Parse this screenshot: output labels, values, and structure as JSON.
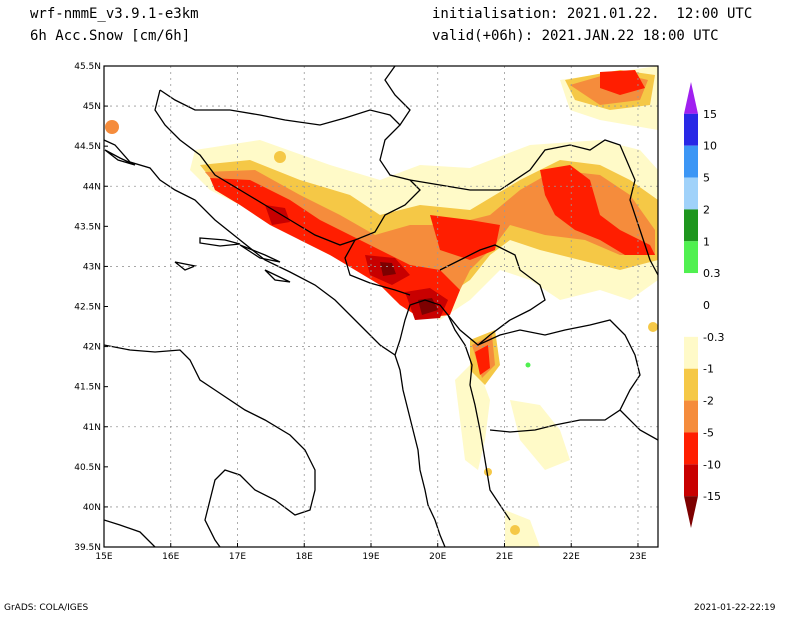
{
  "header": {
    "model": "wrf-nmmE_v3.9.1-e3km",
    "field": "6h Acc.Snow [cm/6h]",
    "init": "initialisation: 2021.01.22.  12:00 UTC",
    "valid": "valid(+06h): 2021.JAN.22 18:00 UTC"
  },
  "footer": {
    "credit": "GrADS: COLA/IGES",
    "timestamp": "2021-01-22-22:19"
  },
  "map": {
    "lat_labels": [
      {
        "value": 45.5,
        "label": "45.5N"
      },
      {
        "value": 45,
        "label": "45N"
      },
      {
        "value": 44.5,
        "label": "44.5N"
      },
      {
        "value": 44,
        "label": "44N"
      },
      {
        "value": 43.5,
        "label": "43.5N"
      },
      {
        "value": 43,
        "label": "43N"
      },
      {
        "value": 42.5,
        "label": "42.5N"
      },
      {
        "value": 42,
        "label": "42N"
      },
      {
        "value": 41.5,
        "label": "41.5N"
      },
      {
        "value": 41,
        "label": "41N"
      },
      {
        "value": 40.5,
        "label": "40.5N"
      },
      {
        "value": 40,
        "label": "40N"
      },
      {
        "value": 39.5,
        "label": "39.5N"
      }
    ],
    "lon_labels": [
      {
        "value": 15,
        "label": "15E"
      },
      {
        "value": 16,
        "label": "16E"
      },
      {
        "value": 17,
        "label": "17E"
      },
      {
        "value": 18,
        "label": "18E"
      },
      {
        "value": 19,
        "label": "19E"
      },
      {
        "value": 20,
        "label": "20E"
      },
      {
        "value": 21,
        "label": "21E"
      },
      {
        "value": 22,
        "label": "22E"
      },
      {
        "value": 23,
        "label": "23E"
      }
    ]
  },
  "colorbar": {
    "segments": [
      {
        "color": "#a020f0"
      },
      {
        "color": "#2828e6"
      },
      {
        "color": "#3c96f5"
      },
      {
        "color": "#a0d2fa"
      },
      {
        "color": "#1e961e"
      },
      {
        "color": "#50f050"
      },
      {
        "color": "#ffffff"
      },
      {
        "color": "#ffffff"
      },
      {
        "color": "#fffac8"
      },
      {
        "color": "#f5c846"
      },
      {
        "color": "#f58c3c"
      },
      {
        "color": "#ff1e00"
      },
      {
        "color": "#c80000"
      },
      {
        "color": "#7d0000"
      }
    ],
    "labels": [
      "15",
      "10",
      "5",
      "2",
      "1",
      "0.3",
      "0",
      "-0.3",
      "-1",
      "-2",
      "-5",
      "-10",
      "-15"
    ]
  }
}
